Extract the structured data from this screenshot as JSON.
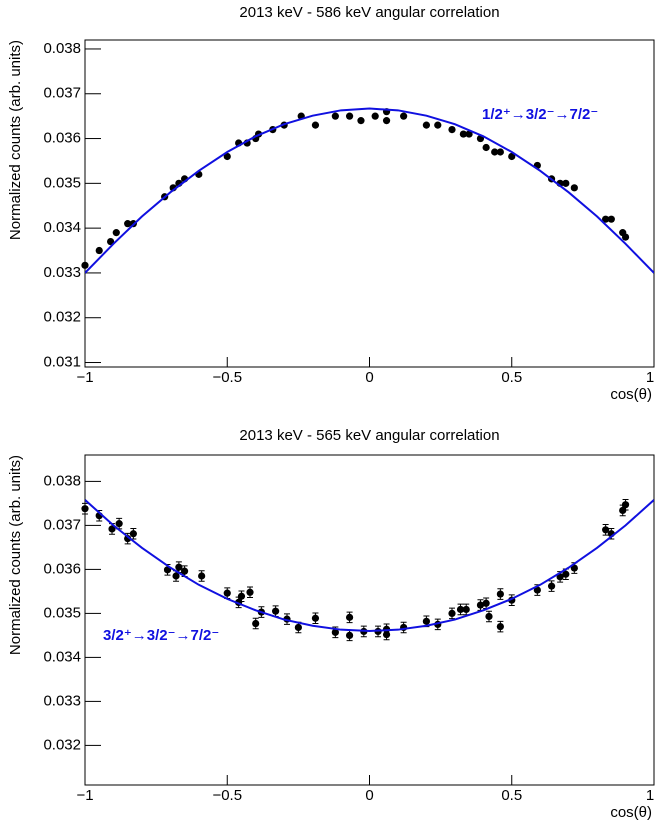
{
  "chart_data": [
    {
      "type": "scatter",
      "title": "2013 keV - 586 keV angular correlation",
      "x_label": "cos(θ)",
      "y_label": "Normalized counts (arb. units)",
      "annotation": "1/2⁺→3/2⁻→7/2⁻",
      "xlim": [
        -1,
        1
      ],
      "ylim": [
        0.0309,
        0.0382
      ],
      "xticks": [
        {
          "value": -1,
          "label": "−1"
        },
        {
          "value": -0.5,
          "label": "−0.5"
        },
        0,
        0.5,
        1
      ],
      "yticks": [
        0.031,
        0.032,
        0.033,
        0.034,
        0.035,
        0.036,
        0.037,
        0.038
      ],
      "series": [
        {
          "color": "#000000",
          "x": [
            -1.0,
            -0.95,
            -0.91,
            -0.89,
            -0.85,
            -0.83,
            -0.72,
            -0.69,
            -0.67,
            -0.65,
            -0.6,
            -0.5,
            -0.46,
            -0.43,
            -0.4,
            -0.39,
            -0.34,
            -0.3,
            -0.24,
            -0.19,
            -0.12,
            -0.07,
            -0.03,
            0.02,
            0.06,
            0.06,
            0.12,
            0.2,
            0.24,
            0.29,
            0.33,
            0.35,
            0.39,
            0.41,
            0.44,
            0.46,
            0.5,
            0.59,
            0.64,
            0.67,
            0.69,
            0.72,
            0.83,
            0.85,
            0.89,
            0.9
          ],
          "values": [
            0.03317,
            0.0335,
            0.0337,
            0.0339,
            0.0341,
            0.0341,
            0.0347,
            0.0349,
            0.035,
            0.0351,
            0.0352,
            0.0356,
            0.0359,
            0.0359,
            0.036,
            0.0361,
            0.0362,
            0.0363,
            0.0365,
            0.0363,
            0.0365,
            0.0365,
            0.0364,
            0.0365,
            0.0364,
            0.0366,
            0.0365,
            0.0363,
            0.0363,
            0.0362,
            0.0361,
            0.0361,
            0.036,
            0.0358,
            0.0357,
            0.0357,
            0.0356,
            0.0354,
            0.0351,
            0.035,
            0.035,
            0.0349,
            0.0342,
            0.0342,
            0.0339,
            0.0338
          ]
        },
        {
          "type": "line",
          "color": "#1010e0",
          "x": [
            -1,
            -0.9,
            -0.8,
            -0.7,
            -0.6,
            -0.5,
            -0.4,
            -0.3,
            -0.2,
            -0.1,
            0,
            0.1,
            0.2,
            0.3,
            0.4,
            0.5,
            0.6,
            0.7,
            0.8,
            0.9,
            1
          ],
          "values": [
            0.033,
            0.03365,
            0.03426,
            0.0348,
            0.03528,
            0.0357,
            0.03605,
            0.03632,
            0.03651,
            0.03663,
            0.03667,
            0.03663,
            0.03651,
            0.03632,
            0.03605,
            0.0357,
            0.03528,
            0.0348,
            0.03426,
            0.03365,
            0.033
          ]
        }
      ]
    },
    {
      "type": "scatter",
      "title": "2013 keV - 565 keV angular correlation",
      "x_label": "cos(θ)",
      "y_label": "Normalized counts (arb. units)",
      "annotation": "3/2⁺→3/2⁻→7/2⁻",
      "xlim": [
        -1,
        1
      ],
      "ylim": [
        0.0311,
        0.0386
      ],
      "xticks": [
        {
          "value": -1,
          "label": "−1"
        },
        {
          "value": -0.5,
          "label": "−0.5"
        },
        0,
        0.5,
        1
      ],
      "yticks": [
        0.032,
        0.033,
        0.034,
        0.035,
        0.036,
        0.037,
        0.038
      ],
      "series": [
        {
          "color": "#000000",
          "x": [
            -1,
            -0.95,
            -0.905,
            -0.88,
            -0.85,
            -0.83,
            -0.71,
            -0.68,
            -0.67,
            -0.65,
            -0.59,
            -0.5,
            -0.46,
            -0.45,
            -0.42,
            -0.4,
            -0.38,
            -0.33,
            -0.29,
            -0.25,
            -0.19,
            -0.12,
            -0.07,
            -0.07,
            -0.02,
            0.03,
            0.06,
            0.06,
            0.12,
            0.2,
            0.24,
            0.29,
            0.32,
            0.34,
            0.39,
            0.41,
            0.42,
            0.46,
            0.46,
            0.5,
            0.59,
            0.64,
            0.67,
            0.69,
            0.72,
            0.83,
            0.85,
            0.89,
            0.9
          ],
          "values": [
            0.03738,
            0.03722,
            0.03692,
            0.03704,
            0.0367,
            0.03681,
            0.03599,
            0.03585,
            0.03605,
            0.03596,
            0.03585,
            0.03546,
            0.03525,
            0.03539,
            0.03548,
            0.03477,
            0.03503,
            0.03505,
            0.03487,
            0.03468,
            0.03489,
            0.03457,
            0.03491,
            0.0345,
            0.03459,
            0.03459,
            0.03452,
            0.03464,
            0.03468,
            0.03482,
            0.03475,
            0.035,
            0.03509,
            0.03509,
            0.03519,
            0.03523,
            0.03493,
            0.03544,
            0.0347,
            0.0353,
            0.03553,
            0.03562,
            0.03583,
            0.03589,
            0.03603,
            0.0369,
            0.03681,
            0.03734,
            0.03747
          ],
          "errors": [
            0.00012,
            0.00012,
            0.00012,
            0.00012,
            0.00012,
            0.00012,
            0.00012,
            0.00012,
            0.00012,
            0.00012,
            0.00012,
            0.00012,
            0.00012,
            0.00012,
            0.00012,
            0.00012,
            0.00012,
            0.00012,
            0.00012,
            0.00012,
            0.00012,
            0.00012,
            0.00012,
            0.00012,
            0.00012,
            0.00012,
            0.00012,
            0.00012,
            0.00012,
            0.00012,
            0.00012,
            0.00012,
            0.00012,
            0.00012,
            0.00012,
            0.00012,
            0.00012,
            0.00012,
            0.00012,
            0.00012,
            0.00012,
            0.00012,
            0.00012,
            0.00012,
            0.00012,
            0.00012,
            0.00012,
            0.00012,
            0.00012
          ]
        },
        {
          "type": "line",
          "color": "#1010e0",
          "x": [
            -1,
            -0.9,
            -0.8,
            -0.7,
            -0.6,
            -0.5,
            -0.4,
            -0.3,
            -0.2,
            -0.1,
            0,
            0.1,
            0.2,
            0.3,
            0.4,
            0.5,
            0.6,
            0.7,
            0.8,
            0.9,
            1
          ],
          "values": [
            0.03758,
            0.037,
            0.03649,
            0.03604,
            0.03565,
            0.03533,
            0.03507,
            0.03486,
            0.03472,
            0.03463,
            0.0346,
            0.03463,
            0.03472,
            0.03486,
            0.03507,
            0.03533,
            0.03565,
            0.03604,
            0.03649,
            0.037,
            0.03758
          ]
        }
      ]
    }
  ]
}
